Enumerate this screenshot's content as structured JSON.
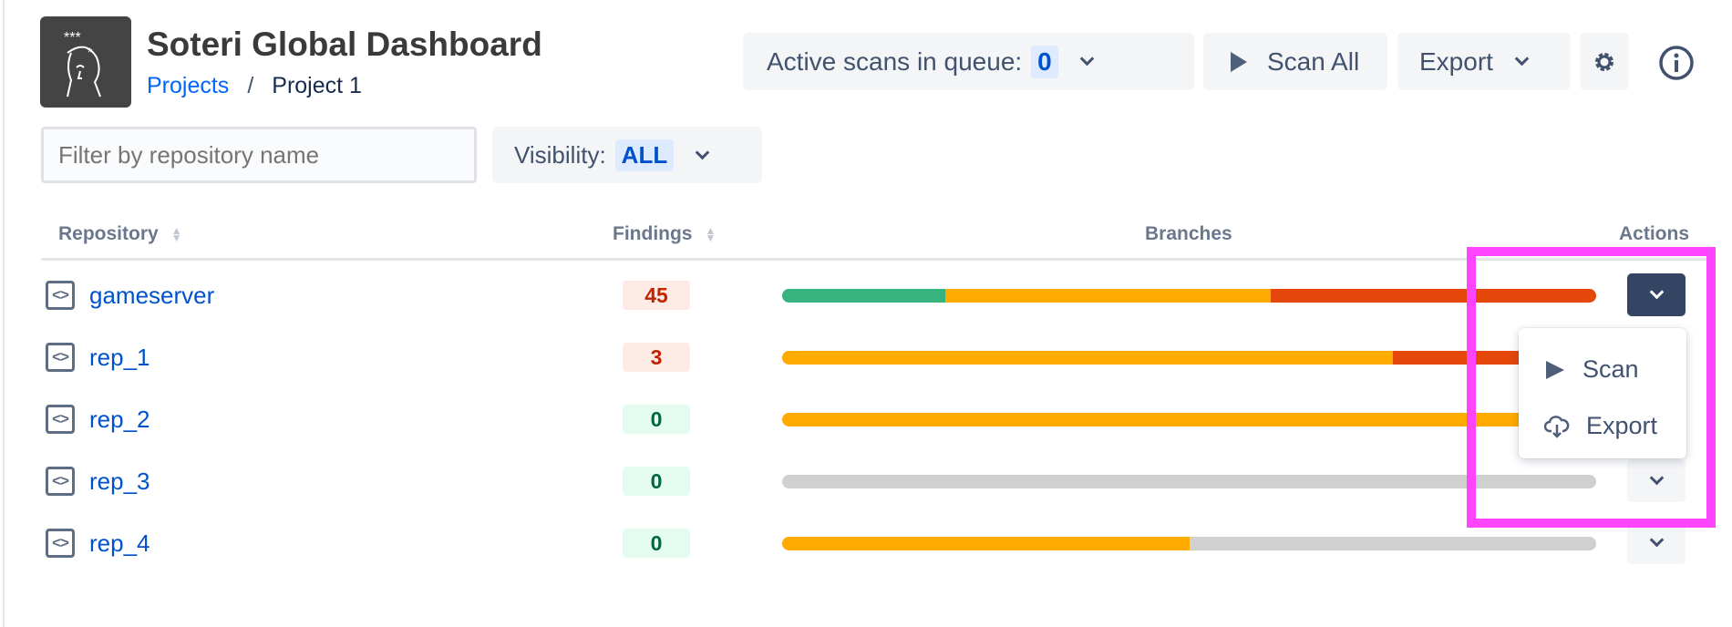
{
  "header": {
    "title": "Soteri Global Dashboard",
    "breadcrumb": [
      "Projects",
      "Project 1"
    ]
  },
  "toolbar": {
    "queue_label": "Active scans in queue:",
    "queue_count": "0",
    "scan_all": "Scan All",
    "export": "Export"
  },
  "filter": {
    "placeholder": "Filter by repository name",
    "value": ""
  },
  "visibility": {
    "label": "Visibility:",
    "value": "ALL"
  },
  "table": {
    "columns": [
      "Repository",
      "Findings",
      "Branches",
      "Actions"
    ],
    "rows": [
      {
        "name": "gameserver",
        "findings": "45",
        "severity": "high",
        "branches": [
          {
            "color": "#36b37e",
            "pct": 20
          },
          {
            "color": "#ffab00",
            "pct": 40
          },
          {
            "color": "#e5470a",
            "pct": 40
          }
        ]
      },
      {
        "name": "rep_1",
        "findings": "3",
        "severity": "high",
        "branches": [
          {
            "color": "#ffab00",
            "pct": 75
          },
          {
            "color": "#e5470a",
            "pct": 25
          }
        ]
      },
      {
        "name": "rep_2",
        "findings": "0",
        "severity": "none",
        "branches": [
          {
            "color": "#ffab00",
            "pct": 100
          }
        ]
      },
      {
        "name": "rep_3",
        "findings": "0",
        "severity": "none",
        "branches": [
          {
            "color": "#d0d0d0",
            "pct": 100
          }
        ]
      },
      {
        "name": "rep_4",
        "findings": "0",
        "severity": "none",
        "branches": [
          {
            "color": "#ffab00",
            "pct": 50
          },
          {
            "color": "#d0d0d0",
            "pct": 50
          }
        ]
      }
    ]
  },
  "actions_menu": {
    "items": [
      {
        "label": "Scan",
        "icon": "play-icon"
      },
      {
        "label": "Export",
        "icon": "cloud-download-icon"
      }
    ]
  },
  "colors": {
    "link": "#0052cc",
    "highlight": "#ff44ff",
    "high_bg": "#ffebe6",
    "high_text": "#bf2600",
    "none_bg": "#e3fcef",
    "none_text": "#006644"
  }
}
